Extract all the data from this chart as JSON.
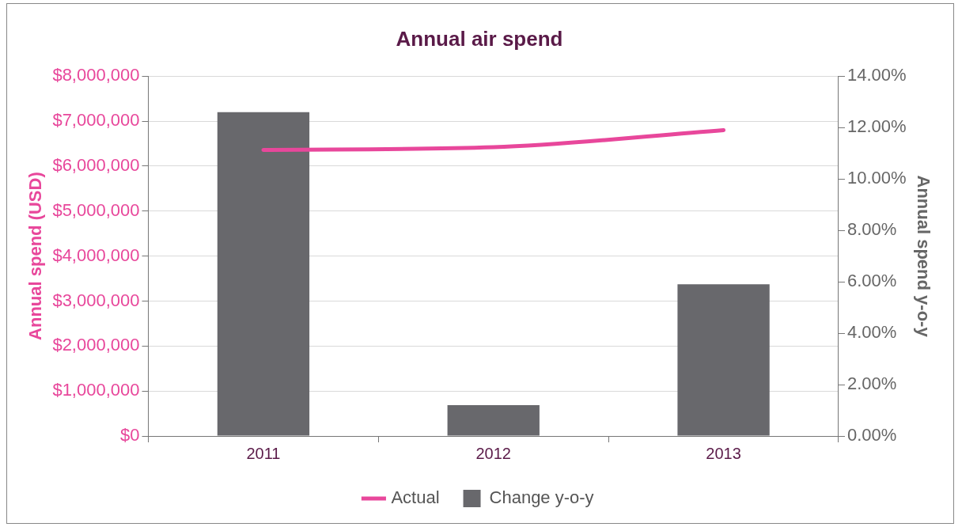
{
  "chart_data": {
    "type": "bar",
    "title": "Annual air spend",
    "ylabel": "Annual spend (USD)",
    "y2label": "Annual spend y-o-y",
    "categories": [
      "2011",
      "2012",
      "2013"
    ],
    "series": [
      {
        "name": "Actual",
        "type": "line",
        "color": "#e8479b",
        "values": [
          6360000,
          6420000,
          6800000
        ]
      },
      {
        "name": "Change y-o-y",
        "axis": "y2",
        "color": "#68686c",
        "values": [
          12.6,
          1.2,
          5.9
        ]
      }
    ],
    "ylim": [
      0,
      8000000
    ],
    "yticks": [
      {
        "value": 0,
        "label": "$0"
      },
      {
        "value": 1000000,
        "label": "$1,000,000"
      },
      {
        "value": 2000000,
        "label": "$2,000,000"
      },
      {
        "value": 3000000,
        "label": "$3,000,000"
      },
      {
        "value": 4000000,
        "label": "$4,000,000"
      },
      {
        "value": 5000000,
        "label": "$5,000,000"
      },
      {
        "value": 6000000,
        "label": "$6,000,000"
      },
      {
        "value": 7000000,
        "label": "$7,000,000"
      },
      {
        "value": 8000000,
        "label": "$8,000,000"
      }
    ],
    "y2lim": [
      0,
      14
    ],
    "y2ticks": [
      {
        "value": 0,
        "label": "0.00%"
      },
      {
        "value": 2,
        "label": "2.00%"
      },
      {
        "value": 4,
        "label": "4.00%"
      },
      {
        "value": 6,
        "label": "6.00%"
      },
      {
        "value": 8,
        "label": "8.00%"
      },
      {
        "value": 10,
        "label": "10.00%"
      },
      {
        "value": 12,
        "label": "12.00%"
      },
      {
        "value": 14,
        "label": "14.00%"
      }
    ],
    "grid": "y",
    "legend": "bottom",
    "marker": "none",
    "line_style": "solid"
  }
}
